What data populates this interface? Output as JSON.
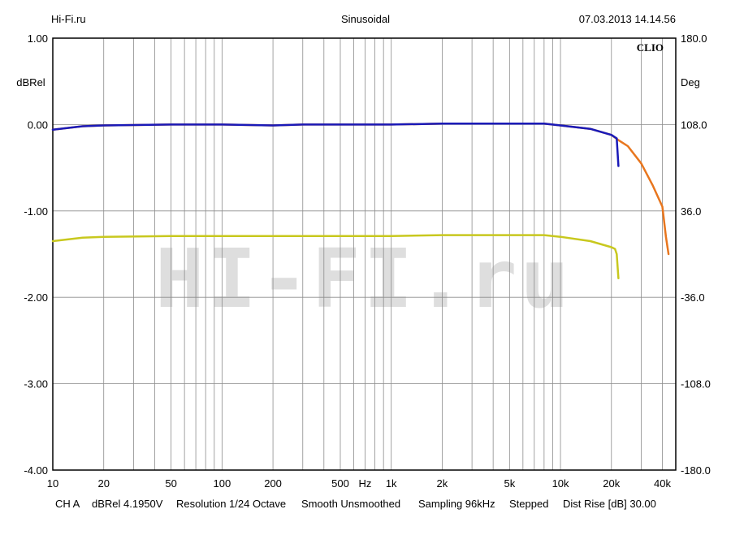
{
  "header": {
    "left": "Hi-Fi.ru",
    "center": "Sinusoidal",
    "right": "07.03.2013 14.14.56"
  },
  "watermark": "HI-FI.ru",
  "logo": "CLIO",
  "footer": {
    "channel": "CH A",
    "level": "dBRel 4.1950V",
    "resolution": "Resolution 1/24 Octave",
    "smooth": "Smooth Unsmoothed",
    "sampling": "Sampling 96kHz",
    "mode": "Stepped",
    "dist_rise": "Dist Rise [dB] 30.00"
  },
  "chart_data": {
    "type": "line",
    "title": "Sinusoidal",
    "xscale": "log",
    "xlim": [
      10,
      48000
    ],
    "ylim": [
      -4,
      1
    ],
    "y2lim": [
      -180,
      180
    ],
    "ylabel": "dBRel",
    "y2label": "Deg",
    "xunit_label": "Hz",
    "grid": true,
    "x_tick_labels": [
      {
        "value": 10,
        "label": "10"
      },
      {
        "value": 20,
        "label": "20"
      },
      {
        "value": 50,
        "label": "50"
      },
      {
        "value": 100,
        "label": "100"
      },
      {
        "value": 200,
        "label": "200"
      },
      {
        "value": 500,
        "label": "500"
      },
      {
        "value": 1000,
        "label": "1k"
      },
      {
        "value": 2000,
        "label": "2k"
      },
      {
        "value": 5000,
        "label": "5k"
      },
      {
        "value": 10000,
        "label": "10k"
      },
      {
        "value": 20000,
        "label": "20k"
      },
      {
        "value": 40000,
        "label": "40k"
      }
    ],
    "y_tick_labels": [
      {
        "value": 1,
        "label": "1.00"
      },
      {
        "value": 0,
        "label": "0.00"
      },
      {
        "value": -1,
        "label": "-1.00"
      },
      {
        "value": -2,
        "label": "-2.00"
      },
      {
        "value": -3,
        "label": "-3.00"
      },
      {
        "value": -4,
        "label": "-4.00"
      }
    ],
    "y2_tick_labels": [
      {
        "value": 180,
        "label": "180.0"
      },
      {
        "value": 108,
        "label": "108.0"
      },
      {
        "value": 36,
        "label": "36.0"
      },
      {
        "value": -36,
        "label": "-36.0"
      },
      {
        "value": -108,
        "label": "-108.0"
      },
      {
        "value": -180,
        "label": "-180.0"
      }
    ],
    "series": [
      {
        "color": "#e8761e",
        "width": 2.5,
        "points": [
          [
            10,
            -0.06
          ],
          [
            15,
            -0.02
          ],
          [
            20,
            -0.01
          ],
          [
            50,
            0
          ],
          [
            100,
            0
          ],
          [
            200,
            -0.01
          ],
          [
            300,
            0
          ],
          [
            1000,
            0
          ],
          [
            2000,
            0.01
          ],
          [
            5000,
            0.01
          ],
          [
            8000,
            0.01
          ],
          [
            10000,
            -0.01
          ],
          [
            15000,
            -0.05
          ],
          [
            20000,
            -0.12
          ],
          [
            22000,
            -0.18
          ],
          [
            25000,
            -0.25
          ],
          [
            30000,
            -0.45
          ],
          [
            35000,
            -0.7
          ],
          [
            40000,
            -0.95
          ],
          [
            42000,
            -1.3
          ],
          [
            43500,
            -1.5
          ]
        ]
      },
      {
        "color": "#1a1ab8",
        "width": 2.5,
        "points": [
          [
            10,
            -0.06
          ],
          [
            15,
            -0.02
          ],
          [
            20,
            -0.01
          ],
          [
            50,
            0
          ],
          [
            100,
            0
          ],
          [
            200,
            -0.01
          ],
          [
            300,
            0
          ],
          [
            1000,
            0
          ],
          [
            2000,
            0.01
          ],
          [
            5000,
            0.01
          ],
          [
            8000,
            0.01
          ],
          [
            10000,
            -0.01
          ],
          [
            15000,
            -0.05
          ],
          [
            20000,
            -0.12
          ],
          [
            21500,
            -0.16
          ],
          [
            22000,
            -0.48
          ]
        ]
      },
      {
        "color": "#c8c81e",
        "width": 2.5,
        "points": [
          [
            10,
            -1.35
          ],
          [
            15,
            -1.31
          ],
          [
            20,
            -1.3
          ],
          [
            50,
            -1.29
          ],
          [
            100,
            -1.29
          ],
          [
            500,
            -1.29
          ],
          [
            1000,
            -1.29
          ],
          [
            2000,
            -1.28
          ],
          [
            5000,
            -1.28
          ],
          [
            8000,
            -1.28
          ],
          [
            10000,
            -1.3
          ],
          [
            15000,
            -1.35
          ],
          [
            20000,
            -1.42
          ],
          [
            21000,
            -1.44
          ],
          [
            21500,
            -1.5
          ],
          [
            22000,
            -1.78
          ]
        ]
      }
    ]
  }
}
